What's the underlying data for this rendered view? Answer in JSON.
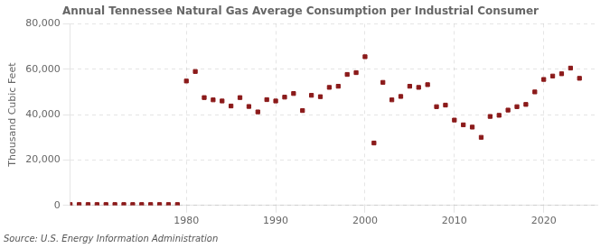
{
  "chart_data": {
    "type": "scatter",
    "title": "Annual Tennessee Natural Gas Average Consumption per Industrial Consumer",
    "ylabel": "Thousand Cubic Feet",
    "annotations": [
      "Source: U.S. Energy Information Administration"
    ],
    "color": "#8b1a1a",
    "marker": "square",
    "grid": true,
    "xlim": [
      1967,
      2026
    ],
    "xticks": [
      1980,
      1990,
      2000,
      2010,
      2020
    ],
    "ylim": [
      0,
      80000
    ],
    "yticks": [
      0,
      {
        "value": 20000,
        "label": "20,000"
      },
      {
        "value": 40000,
        "label": "40,000"
      },
      {
        "value": 60000,
        "label": "60,000"
      },
      {
        "value": 80000,
        "label": "80,000"
      }
    ],
    "x": [
      1967,
      1968,
      1969,
      1970,
      1971,
      1972,
      1973,
      1974,
      1975,
      1976,
      1977,
      1978,
      1979,
      1980,
      1981,
      1982,
      1983,
      1984,
      1985,
      1986,
      1987,
      1988,
      1989,
      1990,
      1991,
      1992,
      1993,
      1994,
      1995,
      1996,
      1997,
      1998,
      1999,
      2000,
      2001,
      2002,
      2003,
      2004,
      2005,
      2006,
      2007,
      2008,
      2009,
      2010,
      2011,
      2012,
      2013,
      2014,
      2015,
      2016,
      2017,
      2018,
      2019,
      2020,
      2021,
      2022,
      2023,
      2024
    ],
    "values": [
      400,
      400,
      400,
      400,
      400,
      400,
      400,
      400,
      400,
      400,
      400,
      400,
      400,
      54800,
      59000,
      47500,
      46500,
      46000,
      43800,
      47500,
      43600,
      41200,
      46600,
      46000,
      47700,
      49300,
      41800,
      48500,
      47900,
      52000,
      52500,
      57700,
      58500,
      65500,
      27500,
      54200,
      46500,
      48000,
      52500,
      52000,
      53200,
      43500,
      44200,
      37600,
      35500,
      34500,
      30000,
      39200,
      39700,
      42000,
      43500,
      44500,
      50000,
      55500,
      57000,
      58000,
      60500,
      56000
    ]
  }
}
